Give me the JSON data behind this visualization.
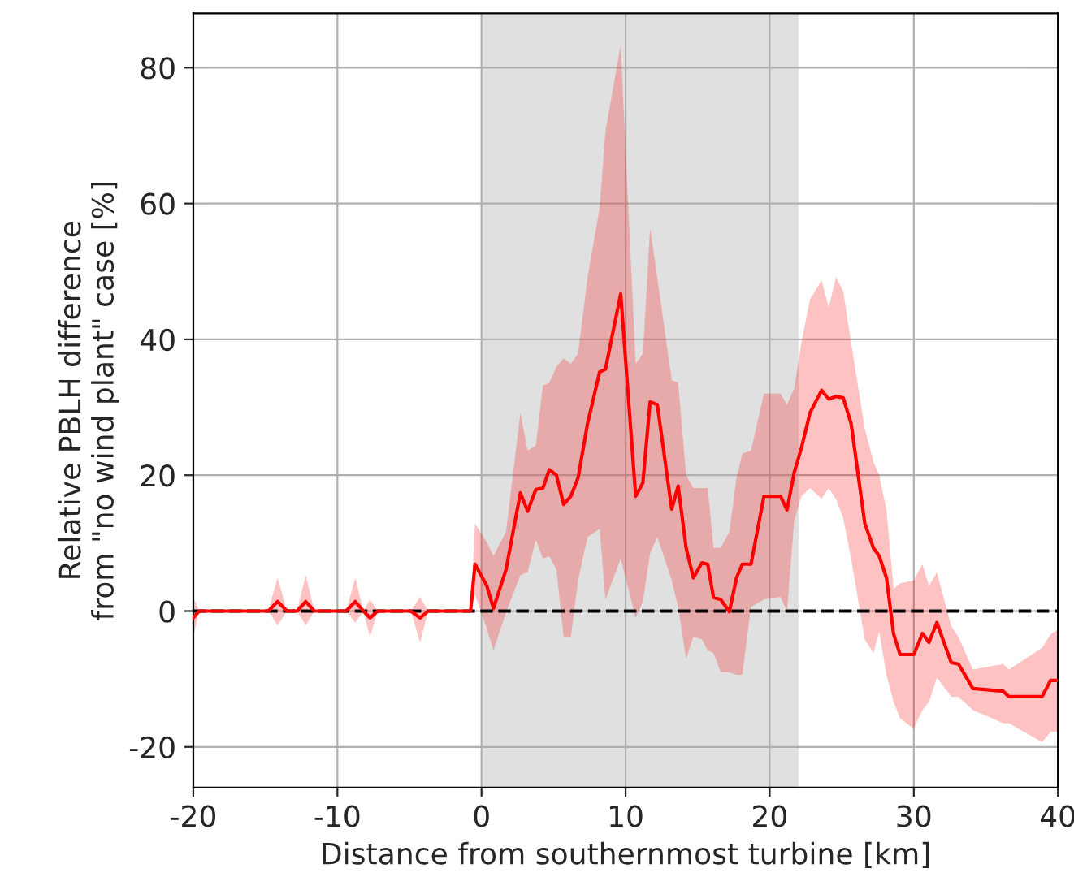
{
  "chart_data": {
    "type": "line",
    "xlabel": "Distance from southernmost turbine [km]",
    "ylabel": "Relative PBLH difference\nfrom \"no wind plant\" case [%]",
    "xlim": [
      -20,
      40
    ],
    "ylim": [
      -26,
      88
    ],
    "xticks": [
      -20,
      -10,
      0,
      10,
      20,
      30,
      40
    ],
    "yticks": [
      -20,
      0,
      20,
      40,
      60,
      80
    ],
    "grid": true,
    "legend": false,
    "marker": "none",
    "line_style": "solid",
    "bands": [
      {
        "axis": "x",
        "from": 0,
        "to": 22,
        "color": "#e0e0e0"
      }
    ],
    "ref_lines": [
      {
        "axis": "y",
        "value": 0,
        "color": "#000000",
        "line_style": "dashed"
      }
    ],
    "series": [
      {
        "color": "#ff0000",
        "x": [
          -20,
          -19.6,
          -14.8,
          -14.15,
          -13.5,
          -12.8,
          -12.2,
          -11.6,
          -9.4,
          -8.76,
          -8.2,
          -7.74,
          -7.2,
          -4.9,
          -4.27,
          -3.7,
          -0.76,
          -0.45,
          0.37,
          0.83,
          1.7,
          2.7,
          3.2,
          3.77,
          4.26,
          4.7,
          5.2,
          5.7,
          6.2,
          6.7,
          7.36,
          8.2,
          8.6,
          9.66,
          10.7,
          11.2,
          11.7,
          12.2,
          13.2,
          13.65,
          14.2,
          14.7,
          15.3,
          15.7,
          16.1,
          16.6,
          17.2,
          17.7,
          18.1,
          18.7,
          19.6,
          20.75,
          21.2,
          21.7,
          22.2,
          22.8,
          23.6,
          24.1,
          24.6,
          25.1,
          25.65,
          26.6,
          27.2,
          27.6,
          28.1,
          28.6,
          29.05,
          30.0,
          30.6,
          31.05,
          31.6,
          32.6,
          33.1,
          34.1,
          36.2,
          36.6,
          38.9,
          39.5,
          40
        ],
        "values": [
          -1,
          0,
          0,
          1.4,
          0,
          0,
          1.4,
          0,
          0,
          1.4,
          0,
          -1,
          0,
          0,
          -1,
          0,
          0,
          6.9,
          3.7,
          0.4,
          6.1,
          17.4,
          14.7,
          17.9,
          18.1,
          20.8,
          20,
          15.7,
          16.9,
          19.6,
          27.6,
          35.2,
          35.6,
          46.7,
          16.9,
          18.9,
          30.8,
          30.4,
          15,
          18.4,
          9.3,
          4.9,
          7.1,
          6.9,
          2,
          1.7,
          -0.1,
          4.9,
          6.9,
          6.9,
          16.9,
          16.9,
          14.9,
          20.4,
          24,
          29.2,
          32.5,
          31.2,
          31.6,
          31.4,
          27.6,
          12.9,
          9.3,
          8.1,
          4.9,
          -3.4,
          -6.4,
          -6.4,
          -3.3,
          -4.6,
          -1.7,
          -7.6,
          -7.8,
          -11.4,
          -11.8,
          -12.6,
          -12.6,
          -10.2,
          -10.2
        ],
        "lower": [
          -3.8,
          0,
          0,
          -2.1,
          0,
          0,
          -2.1,
          0,
          0,
          -1.7,
          0,
          -3.8,
          0,
          0,
          -4.6,
          0,
          0,
          2.4,
          -2.6,
          -5.8,
          -0.2,
          5.3,
          5.7,
          10.5,
          7.7,
          8.1,
          6.1,
          -3.8,
          -3.8,
          4.5,
          10.9,
          12.1,
          1.7,
          7.7,
          -1,
          1.4,
          8.5,
          10.9,
          4.5,
          0.6,
          -7,
          -3.8,
          -4.2,
          -5.8,
          -6.2,
          -9,
          -9,
          -9.4,
          -9.4,
          0.6,
          1.7,
          2.1,
          0,
          13.3,
          16.9,
          18.1,
          16.5,
          18.1,
          16.5,
          13.7,
          7.7,
          -4.2,
          -6.2,
          -3,
          -9.4,
          -13.4,
          -15.8,
          -17.3,
          -14.6,
          -13.4,
          -9.8,
          -12.6,
          -12.6,
          -14.6,
          -16.5,
          -16.5,
          -19.3,
          -17.8,
          -17.8
        ],
        "upper": [
          2.1,
          0,
          0,
          4.9,
          0,
          0,
          5.3,
          0,
          0,
          4.9,
          0,
          1.7,
          0,
          0,
          2.1,
          0,
          0,
          12.9,
          10.1,
          8.1,
          11.7,
          29.2,
          23.6,
          24.4,
          33.2,
          33.6,
          36,
          37.2,
          36.4,
          37.9,
          49.1,
          59.4,
          70.6,
          83.3,
          36.4,
          37.9,
          56.3,
          49.1,
          34,
          33.6,
          20,
          18.1,
          18.1,
          18.1,
          9.3,
          9.3,
          11.7,
          19.6,
          23.2,
          23.6,
          32,
          32,
          30.4,
          32.8,
          39.5,
          45.9,
          48.7,
          44.7,
          49.1,
          47.1,
          39.5,
          26.8,
          22,
          20,
          14.9,
          3.3,
          4.1,
          4.5,
          6.9,
          3.7,
          5.7,
          -2.2,
          -3.8,
          -8.6,
          -7.8,
          -8.6,
          -5.4,
          -3.4,
          -2.7
        ]
      }
    ]
  }
}
